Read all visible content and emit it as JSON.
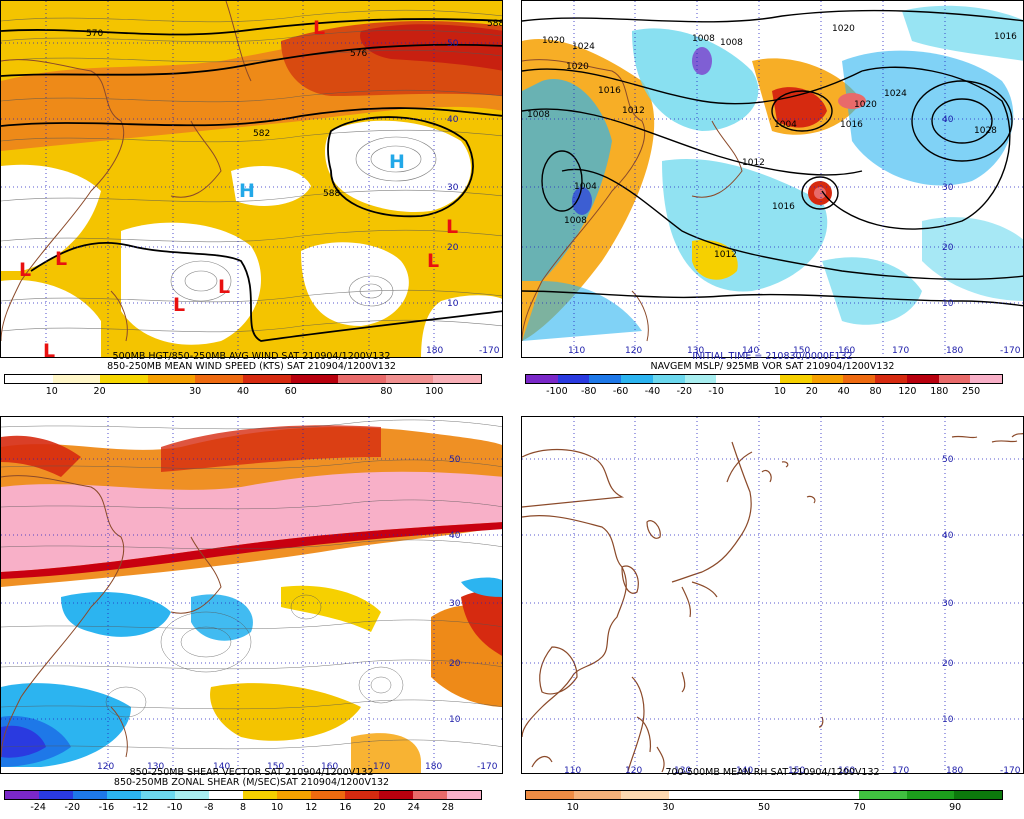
{
  "panels": [
    {
      "id": "wind",
      "caption_line1": "500MB HGT/850-250MB AVG WIND SAT 210904/1200V132",
      "caption_line2": "850-250MB MEAN WIND SPEED (KTS) SAT 210904/1200V132",
      "legend": {
        "colors": [
          "#ffffff",
          "#fff6c8",
          "#f6d600",
          "#f6a000",
          "#ee6a10",
          "#d62a10",
          "#b8000e",
          "#e86a6a",
          "#f09090",
          "#f8b0b8"
        ],
        "ticks": [
          "10",
          "20",
          "30",
          "40",
          "60",
          "80",
          "100"
        ]
      },
      "contour_labels": [
        "570",
        "576",
        "582",
        "588",
        "588"
      ],
      "lon_labels": [
        "180",
        "-170"
      ],
      "lat_labels": [
        "50",
        "40",
        "30",
        "20",
        "10"
      ],
      "high_label": "H",
      "low_label": "L"
    },
    {
      "id": "mslp",
      "caption_line1": "INITIAL TIME = 210830/0000F132",
      "caption_line2": "NAVGEM MSLP/ 925MB VOR SAT 210904/1200V132",
      "legend": {
        "colors": [
          "#7a28c8",
          "#2a3ae0",
          "#1e78e8",
          "#2cb4f0",
          "#6cd8ee",
          "#a8eef0",
          "#ffffff",
          "#ffffff",
          "#f6d000",
          "#f6a000",
          "#ee6a10",
          "#d62a10",
          "#b8000e",
          "#e86a6a",
          "#f8b0c8"
        ],
        "ticks": [
          "-100",
          "-80",
          "-60",
          "-40",
          "-20",
          "-10",
          "10",
          "20",
          "40",
          "80",
          "120",
          "180",
          "250"
        ]
      },
      "isobar_labels": [
        "1020",
        "1024",
        "1020",
        "1016",
        "1012",
        "1008",
        "1004",
        "1008",
        "1008",
        "1004",
        "1012",
        "1016",
        "1012",
        "1020",
        "1024",
        "1028",
        "1016",
        "1020",
        "1016",
        "1008"
      ],
      "lon_labels": [
        "110",
        "120",
        "130",
        "140",
        "150",
        "160",
        "170",
        "180",
        "-170"
      ],
      "lat_labels": [
        "40",
        "30",
        "20",
        "10"
      ]
    },
    {
      "id": "shear",
      "caption_line1": "850-250MB SHEAR VECTOR SAT 210904/1200V132",
      "caption_line2": "850-250MB ZONAL SHEAR (M/SEC)SAT 210904/1200V132",
      "legend": {
        "colors": [
          "#7a28c8",
          "#2a3ae0",
          "#1e78e8",
          "#2cb4f0",
          "#6cd8ee",
          "#a8eef0",
          "#ffffff",
          "#f6d000",
          "#f6a000",
          "#ee6a10",
          "#d62a10",
          "#b8000e",
          "#e86a6a",
          "#f8b0c8"
        ],
        "ticks": [
          "-24",
          "-20",
          "-16",
          "-12",
          "-10",
          "-8",
          "8",
          "10",
          "12",
          "16",
          "20",
          "24",
          "28"
        ]
      },
      "lon_labels": [
        "120",
        "130",
        "140",
        "150",
        "160",
        "170",
        "180",
        "-170"
      ],
      "lat_labels": [
        "50",
        "40",
        "30",
        "20",
        "10"
      ]
    },
    {
      "id": "rh",
      "caption_line1": "700-500MB MEAN RH SAT 210904/1200V132",
      "caption_line2": "",
      "legend": {
        "colors": [
          "#ee8c44",
          "#f6b27a",
          "#fcd8b0",
          "#ffffff",
          "#ffffff",
          "#ffffff",
          "#ffffff",
          "#40c040",
          "#1c9e1c",
          "#0c780c"
        ],
        "ticks": [
          "10",
          "30",
          "50",
          "70",
          "90"
        ]
      },
      "lon_labels": [
        "110",
        "120",
        "130",
        "140",
        "150",
        "160",
        "170",
        "180",
        "-170"
      ],
      "lat_labels": [
        "50",
        "40",
        "30",
        "20",
        "10"
      ]
    }
  ],
  "colors": {
    "coast": "#8b4a2a",
    "grid": "#2020c0",
    "high": "#22a8e8",
    "low": "#e81010"
  }
}
